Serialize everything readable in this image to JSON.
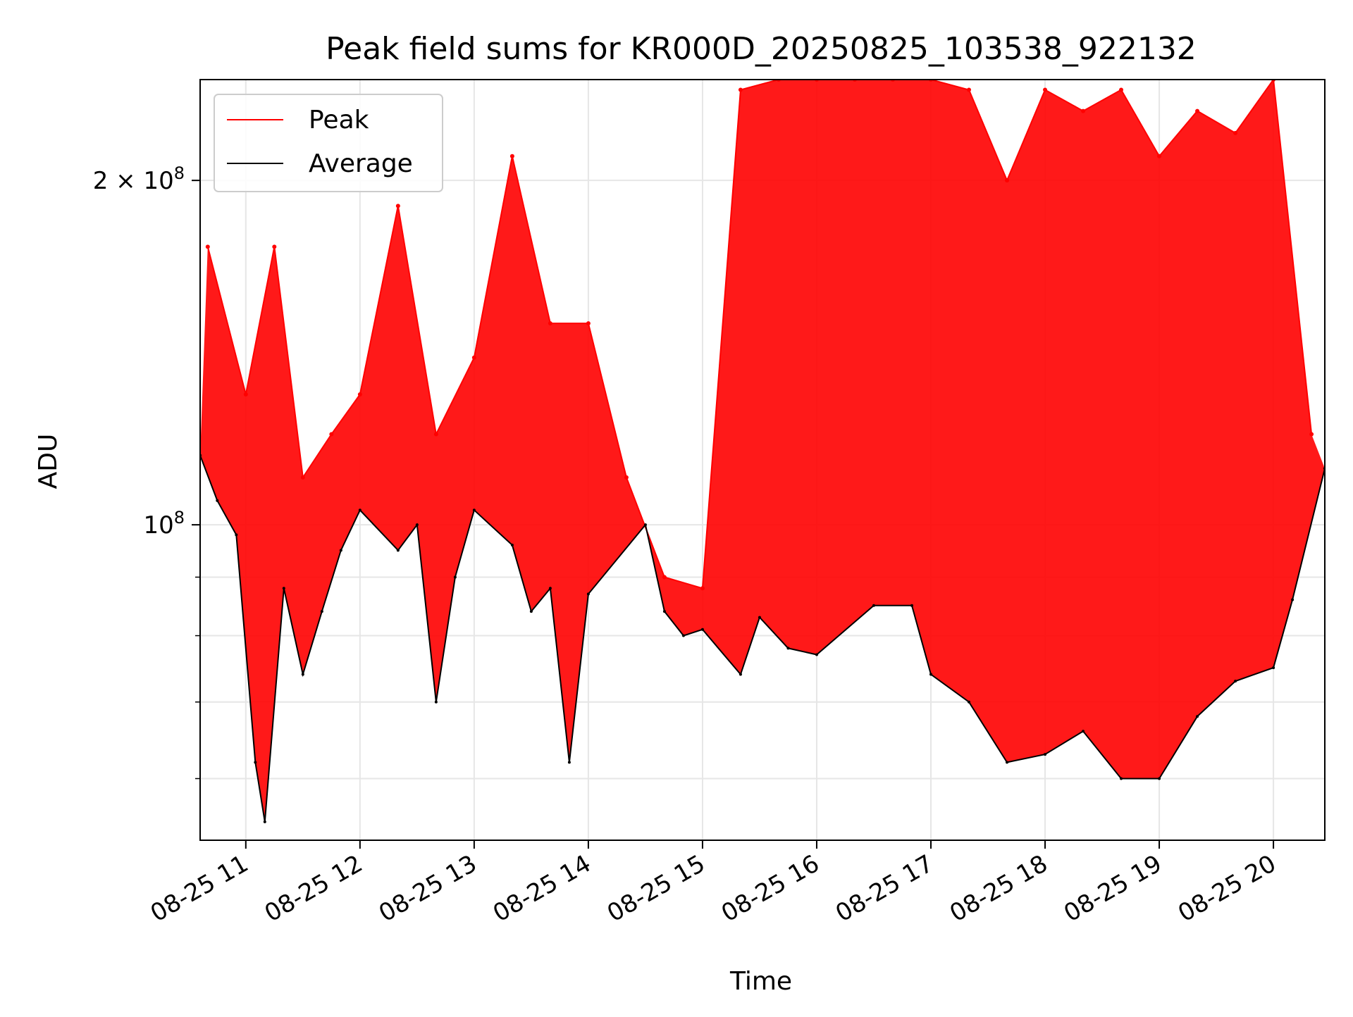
{
  "chart_data": {
    "type": "line",
    "title": "Peak field sums for KR000D_20250825_103538_922132",
    "xlabel": "Time",
    "ylabel": "ADU",
    "yscale": "log",
    "xlim": [
      "2025-08-25 10:36",
      "2025-08-25 20:27"
    ],
    "ylim": [
      53000000,
      245000000
    ],
    "grid": true,
    "legend": "top-left",
    "x_tick_labels": [
      "08-25 11",
      "08-25 12",
      "08-25 13",
      "08-25 14",
      "08-25 15",
      "08-25 16",
      "08-25 17",
      "08-25 18",
      "08-25 19",
      "08-25 20"
    ],
    "x_ticks": [
      "2025-08-25 11:00",
      "2025-08-25 12:00",
      "2025-08-25 13:00",
      "2025-08-25 14:00",
      "2025-08-25 15:00",
      "2025-08-25 16:00",
      "2025-08-25 17:00",
      "2025-08-25 18:00",
      "2025-08-25 19:00",
      "2025-08-25 20:00"
    ],
    "y_ticks_major": [
      {
        "value": 100000000,
        "label_base": "10",
        "label_exp": "8",
        "label_prefix": ""
      },
      {
        "value": 200000000,
        "label_base": "10",
        "label_exp": "8",
        "label_prefix": "2 × "
      }
    ],
    "y_ticks_minor": [
      60000000,
      70000000,
      80000000,
      90000000
    ],
    "colors": {
      "peak": "#ff0000",
      "average": "#000000"
    },
    "series": [
      {
        "name": "Peak",
        "color": "#ff0000",
        "x": [
          "2025-08-25 10:40",
          "2025-08-25 11:00",
          "2025-08-25 11:15",
          "2025-08-25 11:30",
          "2025-08-25 11:45",
          "2025-08-25 12:00",
          "2025-08-25 12:20",
          "2025-08-25 12:40",
          "2025-08-25 13:00",
          "2025-08-25 13:20",
          "2025-08-25 13:40",
          "2025-08-25 14:00",
          "2025-08-25 14:20",
          "2025-08-25 14:40",
          "2025-08-25 15:00",
          "2025-08-25 15:20",
          "2025-08-25 15:40",
          "2025-08-25 16:00",
          "2025-08-25 16:20",
          "2025-08-25 16:40",
          "2025-08-25 17:00",
          "2025-08-25 17:20",
          "2025-08-25 17:40",
          "2025-08-25 18:00",
          "2025-08-25 18:20",
          "2025-08-25 18:40",
          "2025-08-25 19:00",
          "2025-08-25 19:20",
          "2025-08-25 19:40",
          "2025-08-25 20:00",
          "2025-08-25 20:20"
        ],
        "y": [
          175000000,
          130000000,
          175000000,
          110000000,
          120000000,
          130000000,
          190000000,
          120000000,
          140000000,
          210000000,
          150000000,
          150000000,
          110000000,
          90000000,
          88000000,
          240000000,
          245000000,
          245000000,
          245000000,
          245000000,
          245000000,
          240000000,
          200000000,
          240000000,
          230000000,
          240000000,
          210000000,
          230000000,
          220000000,
          245000000,
          120000000
        ]
      },
      {
        "name": "Average",
        "color": "#000000",
        "x": [
          "2025-08-25 10:36",
          "2025-08-25 10:45",
          "2025-08-25 10:55",
          "2025-08-25 11:05",
          "2025-08-25 11:10",
          "2025-08-25 11:20",
          "2025-08-25 11:30",
          "2025-08-25 11:40",
          "2025-08-25 11:50",
          "2025-08-25 12:00",
          "2025-08-25 12:20",
          "2025-08-25 12:30",
          "2025-08-25 12:40",
          "2025-08-25 12:50",
          "2025-08-25 13:00",
          "2025-08-25 13:20",
          "2025-08-25 13:30",
          "2025-08-25 13:40",
          "2025-08-25 13:50",
          "2025-08-25 14:00",
          "2025-08-25 14:30",
          "2025-08-25 14:40",
          "2025-08-25 14:50",
          "2025-08-25 15:00",
          "2025-08-25 15:20",
          "2025-08-25 15:30",
          "2025-08-25 15:45",
          "2025-08-25 16:00",
          "2025-08-25 16:30",
          "2025-08-25 16:50",
          "2025-08-25 17:00",
          "2025-08-25 17:20",
          "2025-08-25 17:40",
          "2025-08-25 18:00",
          "2025-08-25 18:20",
          "2025-08-25 18:40",
          "2025-08-25 19:00",
          "2025-08-25 19:20",
          "2025-08-25 19:40",
          "2025-08-25 20:00",
          "2025-08-25 20:10",
          "2025-08-25 20:27"
        ],
        "y": [
          115000000,
          105000000,
          98000000,
          62000000,
          55000000,
          88000000,
          74000000,
          84000000,
          95000000,
          103000000,
          95000000,
          100000000,
          70000000,
          90000000,
          103000000,
          96000000,
          84000000,
          88000000,
          62000000,
          87000000,
          100000000,
          84000000,
          80000000,
          81000000,
          74000000,
          83000000,
          78000000,
          77000000,
          85000000,
          85000000,
          74000000,
          70000000,
          62000000,
          63000000,
          66000000,
          60000000,
          60000000,
          68000000,
          73000000,
          75000000,
          86000000,
          112000000
        ]
      }
    ]
  }
}
